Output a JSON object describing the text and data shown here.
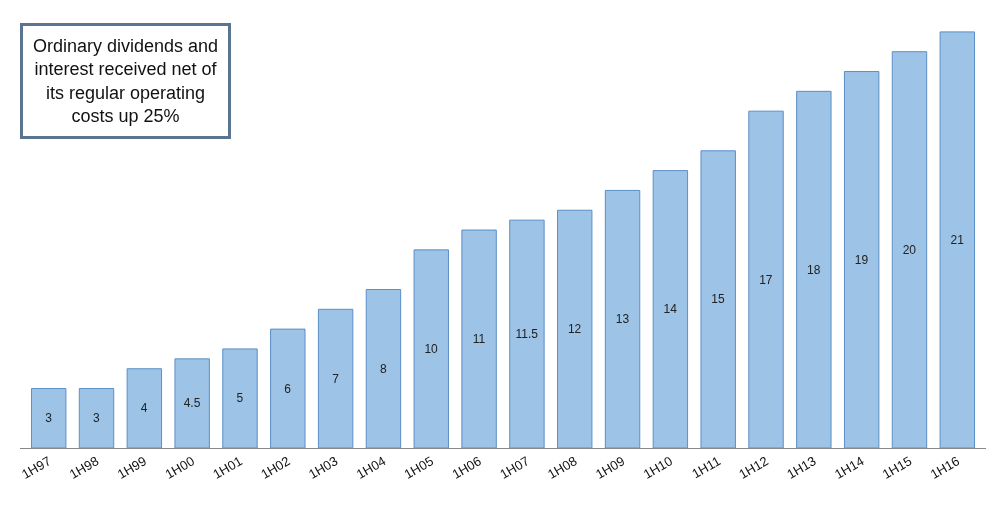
{
  "chart_data": {
    "type": "bar",
    "categories": [
      "1H97",
      "1H98",
      "1H99",
      "1H00",
      "1H01",
      "1H02",
      "1H03",
      "1H04",
      "1H05",
      "1H06",
      "1H07",
      "1H08",
      "1H09",
      "1H10",
      "1H11",
      "1H12",
      "1H13",
      "1H14",
      "1H15",
      "1H16"
    ],
    "values": [
      3,
      3,
      4,
      4.5,
      5,
      6,
      7,
      8,
      10,
      11,
      11.5,
      12,
      13,
      14,
      15,
      17,
      18,
      19,
      20,
      21
    ],
    "color": "#9dc3e6",
    "data_labels": true,
    "tick_labels": "x",
    "annotations": [
      "Ordinary dividends and interest received net of its regular operating costs up 25%"
    ]
  }
}
